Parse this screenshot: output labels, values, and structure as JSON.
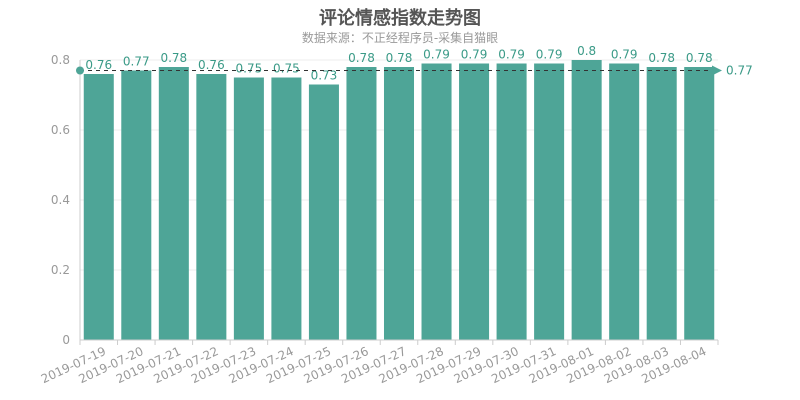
{
  "chart_data": {
    "type": "bar",
    "title": "评论情感指数走势图",
    "subtitle": "数据来源：不正经程序员-采集自猫眼",
    "categories": [
      "2019-07-19",
      "2019-07-20",
      "2019-07-21",
      "2019-07-22",
      "2019-07-23",
      "2019-07-24",
      "2019-07-25",
      "2019-07-26",
      "2019-07-27",
      "2019-07-28",
      "2019-07-29",
      "2019-07-30",
      "2019-07-31",
      "2019-08-01",
      "2019-08-02",
      "2019-08-03",
      "2019-08-04"
    ],
    "values": [
      0.76,
      0.77,
      0.78,
      0.76,
      0.75,
      0.75,
      0.73,
      0.78,
      0.78,
      0.79,
      0.79,
      0.79,
      0.79,
      0.8,
      0.79,
      0.78,
      0.78
    ],
    "value_labels": [
      "0.76",
      "0.77",
      "0.78",
      "0.76",
      "0.75",
      "0.75",
      "0.73",
      "0.78",
      "0.78",
      "0.79",
      "0.79",
      "0.79",
      "0.79",
      "0.8",
      "0.79",
      "0.78",
      "0.78"
    ],
    "y_ticks": [
      0,
      0.2,
      0.4,
      0.6,
      0.8
    ],
    "y_tick_labels": [
      "0",
      "0.2",
      "0.4",
      "0.6",
      "0.8"
    ],
    "ylim": [
      0,
      0.8
    ],
    "mark_line": {
      "type": "average",
      "value": 0.77,
      "label": "0.77"
    },
    "xlabel": "",
    "ylabel": "",
    "grid": true,
    "bar_color": "#4ea597",
    "label_color": "#3a9a87",
    "legend": null
  }
}
